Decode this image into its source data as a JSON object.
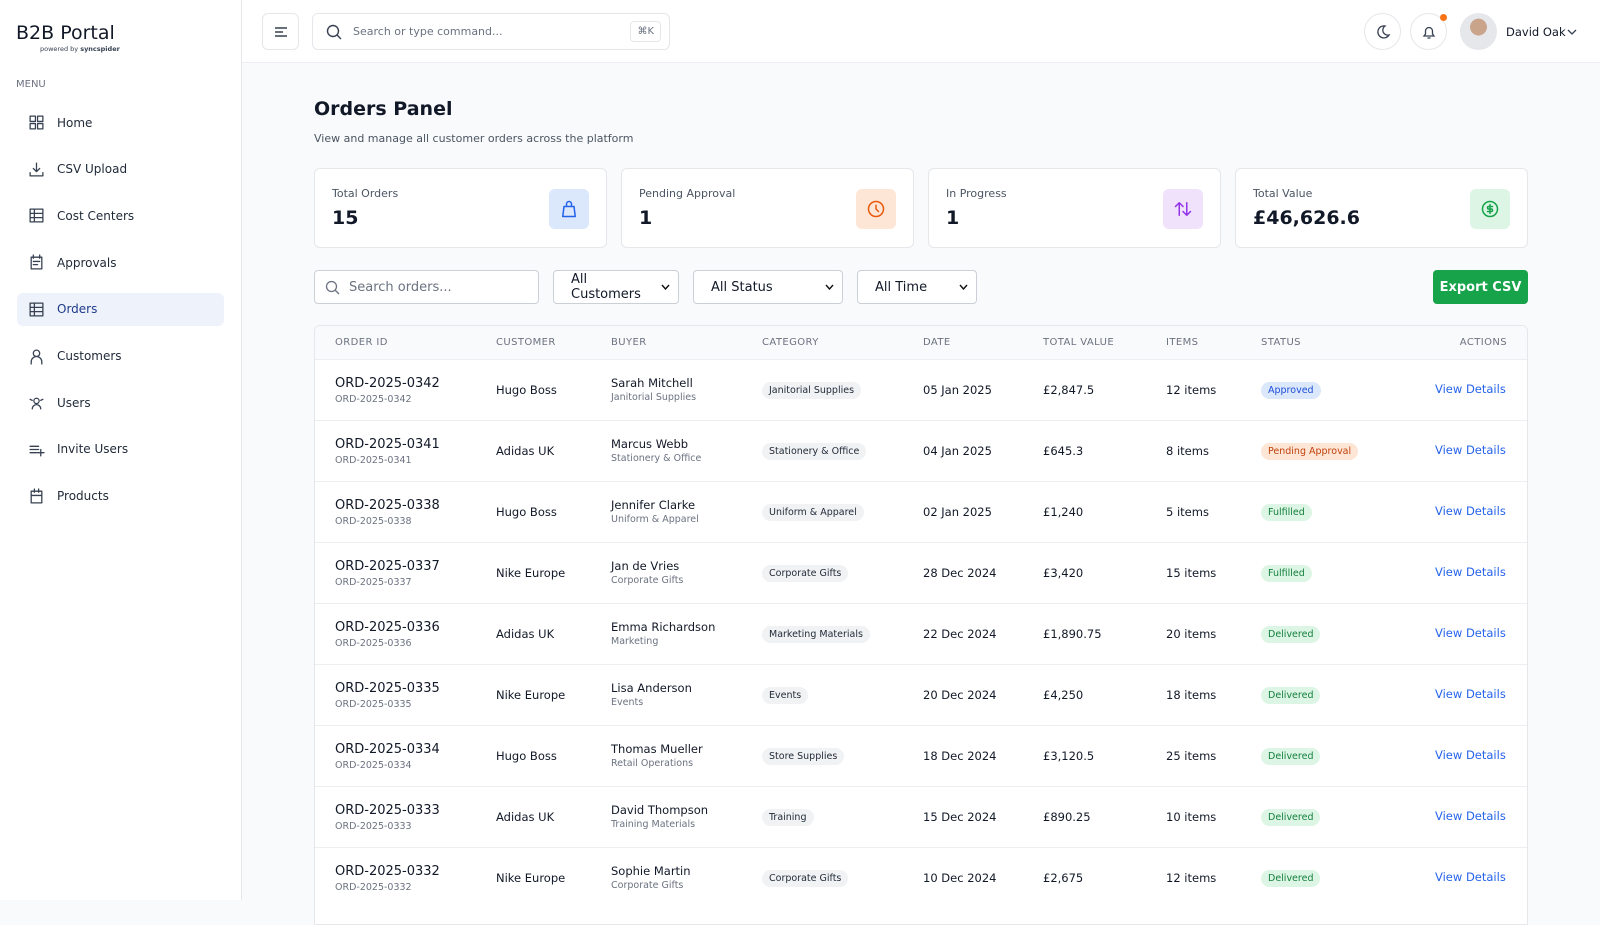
{
  "brand": {
    "title": "B2B Portal",
    "tagline": "powered by",
    "company": "syncspider"
  },
  "menu": {
    "heading": "MENU",
    "items": [
      "Home",
      "CSV Upload",
      "Cost Centers",
      "Approvals",
      "Orders",
      "Customers",
      "Users",
      "Invite Users",
      "Products"
    ],
    "active": 4
  },
  "topbar": {
    "search_placeholder": "Search or type command...",
    "shortcut": "⌘K",
    "user": "David Oak"
  },
  "page": {
    "title": "Orders Panel",
    "subtitle": "View and manage all customer orders across the platform"
  },
  "stats": [
    {
      "label": "Total Orders",
      "value": "15",
      "color": "#2563eb",
      "bg": "#dbe7fb"
    },
    {
      "label": "Pending Approval",
      "value": "1",
      "color": "#ea580c",
      "bg": "#fde6d6"
    },
    {
      "label": "In Progress",
      "value": "1",
      "color": "#9333ea",
      "bg": "#f0e2fb"
    },
    {
      "label": "Total Value",
      "value": "£46,626.6",
      "color": "#16a34a",
      "bg": "#dcf5e4"
    }
  ],
  "filters": {
    "search_placeholder": "Search orders...",
    "customers": "All Customers",
    "status": "All Status",
    "time": "All Time",
    "export": "Export CSV"
  },
  "table": {
    "columns": [
      "ORDER ID",
      "CUSTOMER",
      "BUYER",
      "CATEGORY",
      "DATE",
      "TOTAL VALUE",
      "ITEMS",
      "STATUS",
      "ACTIONS"
    ],
    "action_label": "View Details",
    "rows": [
      {
        "id": "ORD-2025-0342",
        "customer": "Hugo Boss",
        "buyer": "Sarah Mitchell",
        "department": "Janitorial Supplies",
        "category": "Janitorial Supplies",
        "date": "05 Jan 2025",
        "total": "£2,847.5",
        "items": "12 items",
        "status": "Approved",
        "status_color": "#1d4ed8",
        "status_bg": "#dbe7fb"
      },
      {
        "id": "ORD-2025-0341",
        "customer": "Adidas UK",
        "buyer": "Marcus Webb",
        "department": "Stationery & Office",
        "category": "Stationery & Office",
        "date": "04 Jan 2025",
        "total": "£645.3",
        "items": "8 items",
        "status": "Pending Approval",
        "status_color": "#c2410c",
        "status_bg": "#fde6d6"
      },
      {
        "id": "ORD-2025-0338",
        "customer": "Hugo Boss",
        "buyer": "Jennifer Clarke",
        "department": "Uniform & Apparel",
        "category": "Uniform & Apparel",
        "date": "02 Jan 2025",
        "total": "£1,240",
        "items": "5 items",
        "status": "Fulfilled",
        "status_color": "#15803d",
        "status_bg": "#dcf5e4"
      },
      {
        "id": "ORD-2025-0337",
        "customer": "Nike Europe",
        "buyer": "Jan de Vries",
        "department": "Corporate Gifts",
        "category": "Corporate Gifts",
        "date": "28 Dec 2024",
        "total": "£3,420",
        "items": "15 items",
        "status": "Fulfilled",
        "status_color": "#15803d",
        "status_bg": "#dcf5e4"
      },
      {
        "id": "ORD-2025-0336",
        "customer": "Adidas UK",
        "buyer": "Emma Richardson",
        "department": "Marketing",
        "category": "Marketing Materials",
        "date": "22 Dec 2024",
        "total": "£1,890.75",
        "items": "20 items",
        "status": "Delivered",
        "status_color": "#15803d",
        "status_bg": "#dcf5e4"
      },
      {
        "id": "ORD-2025-0335",
        "customer": "Nike Europe",
        "buyer": "Lisa Anderson",
        "department": "Events",
        "category": "Events",
        "date": "20 Dec 2024",
        "total": "£4,250",
        "items": "18 items",
        "status": "Delivered",
        "status_color": "#15803d",
        "status_bg": "#dcf5e4"
      },
      {
        "id": "ORD-2025-0334",
        "customer": "Hugo Boss",
        "buyer": "Thomas Mueller",
        "department": "Retail Operations",
        "category": "Store Supplies",
        "date": "18 Dec 2024",
        "total": "£3,120.5",
        "items": "25 items",
        "status": "Delivered",
        "status_color": "#15803d",
        "status_bg": "#dcf5e4"
      },
      {
        "id": "ORD-2025-0333",
        "customer": "Adidas UK",
        "buyer": "David Thompson",
        "department": "Training Materials",
        "category": "Training",
        "date": "15 Dec 2024",
        "total": "£890.25",
        "items": "10 items",
        "status": "Delivered",
        "status_color": "#15803d",
        "status_bg": "#dcf5e4"
      },
      {
        "id": "ORD-2025-0332",
        "customer": "Nike Europe",
        "buyer": "Sophie Martin",
        "department": "Corporate Gifts",
        "category": "Corporate Gifts",
        "date": "10 Dec 2024",
        "total": "£2,675",
        "items": "12 items",
        "status": "Delivered",
        "status_color": "#15803d",
        "status_bg": "#dcf5e4"
      }
    ]
  }
}
